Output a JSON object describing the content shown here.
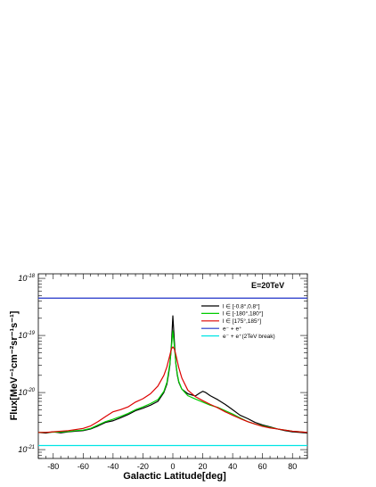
{
  "chart_data": {
    "type": "line",
    "annotation": "E=20TeV",
    "xlabel": "Galactic Latitude[deg]",
    "ylabel": "Flux[MeV⁻¹cm⁻²sr⁻¹s⁻¹]",
    "xlim": [
      -90,
      90
    ],
    "ylim": [
      7e-22,
      1.2e-18
    ],
    "yscale": "log",
    "x_ticks": [
      -80,
      -60,
      -40,
      -20,
      0,
      20,
      40,
      60,
      80
    ],
    "x_tick_labels": [
      "-80",
      "-60",
      "-40",
      "-20",
      "0",
      "20",
      "40",
      "60",
      "80"
    ],
    "y_ticks": [
      {
        "value": 1e-21,
        "mantissa": "10",
        "exponent": "-21"
      },
      {
        "value": 1e-20,
        "mantissa": "10",
        "exponent": "-20"
      },
      {
        "value": 1e-19,
        "mantissa": "10",
        "exponent": "-19"
      },
      {
        "value": 1e-18,
        "mantissa": "10",
        "exponent": "-18"
      }
    ],
    "legend_position": "top-right",
    "series": [
      {
        "name": "l ∈ [-0.8°,0.8°]",
        "color": "#000000",
        "x": [
          -90,
          -85,
          -80,
          -75,
          -70,
          -65,
          -60,
          -55,
          -50,
          -45,
          -40,
          -35,
          -30,
          -25,
          -20,
          -15,
          -10,
          -6,
          -4,
          -3,
          -2,
          -1,
          0,
          1,
          2,
          3,
          4,
          6,
          10,
          15,
          18,
          20,
          22,
          25,
          30,
          35,
          40,
          45,
          50,
          55,
          60,
          65,
          70,
          75,
          80,
          85,
          90
        ],
        "y": [
          2e-21,
          1.95e-21,
          2.05e-21,
          1.97e-21,
          2.05e-21,
          2.1e-21,
          2.15e-21,
          2.3e-21,
          2.6e-21,
          3e-21,
          3.2e-21,
          3.6e-21,
          4.1e-21,
          4.8e-21,
          5.3e-21,
          6e-21,
          7e-21,
          1e-20,
          1.4e-20,
          2e-20,
          3e-20,
          6.5e-20,
          2.2e-19,
          8e-20,
          3.2e-20,
          2e-20,
          1.5e-20,
          1.15e-20,
          9.5e-21,
          8.7e-21,
          9.8e-21,
          1.05e-20,
          1e-20,
          8.8e-21,
          7.5e-21,
          6.2e-21,
          5e-21,
          4e-21,
          3.5e-21,
          3e-21,
          2.7e-21,
          2.5e-21,
          2.3e-21,
          2.15e-21,
          2.05e-21,
          2e-21,
          1.95e-21
        ]
      },
      {
        "name": "l ∈ [-180°,180°]",
        "color": "#00cc00",
        "x": [
          -90,
          -85,
          -80,
          -75,
          -70,
          -65,
          -60,
          -55,
          -50,
          -45,
          -40,
          -35,
          -30,
          -25,
          -20,
          -15,
          -10,
          -6,
          -4,
          -3,
          -2,
          -1,
          0,
          1,
          2,
          3,
          4,
          6,
          10,
          15,
          20,
          25,
          30,
          35,
          40,
          45,
          50,
          55,
          60,
          65,
          70,
          75,
          80,
          85,
          90
        ],
        "y": [
          2e-21,
          2e-21,
          2.02e-21,
          2.03e-21,
          2.08e-21,
          2.15e-21,
          2.2e-21,
          2.35e-21,
          2.7e-21,
          3.1e-21,
          3.4e-21,
          3.8e-21,
          4.3e-21,
          5e-21,
          5.6e-21,
          6.4e-21,
          7.5e-21,
          1.05e-20,
          1.5e-20,
          2.2e-20,
          3.2e-20,
          6e-20,
          1.2e-19,
          6.5e-20,
          3.3e-20,
          2.1e-20,
          1.55e-20,
          1.15e-20,
          8.8e-21,
          7.7e-21,
          6.8e-21,
          6e-21,
          5.5e-21,
          4.8e-21,
          4.2e-21,
          3.6e-21,
          3.1e-21,
          2.8e-21,
          2.6e-21,
          2.45e-21,
          2.3e-21,
          2.2e-21,
          2.1e-21,
          2.05e-21,
          2e-21
        ]
      },
      {
        "name": "l ∈ [175°,185°]",
        "color": "#dd0000",
        "x": [
          -90,
          -85,
          -80,
          -75,
          -70,
          -65,
          -60,
          -55,
          -50,
          -45,
          -40,
          -35,
          -30,
          -25,
          -20,
          -15,
          -10,
          -6,
          -4,
          -2,
          -1,
          0,
          1,
          2,
          4,
          6,
          10,
          15,
          20,
          25,
          30,
          35,
          40,
          45,
          50,
          55,
          60,
          65,
          70,
          75,
          80,
          85,
          90
        ],
        "y": [
          2e-21,
          2e-21,
          2.05e-21,
          2.1e-21,
          2.15e-21,
          2.25e-21,
          2.35e-21,
          2.6e-21,
          3.1e-21,
          3.8e-21,
          4.6e-21,
          5e-21,
          5.6e-21,
          6.8e-21,
          7.8e-21,
          9.5e-21,
          1.3e-20,
          2e-20,
          2.8e-20,
          4.5e-20,
          5.8e-20,
          6.3e-20,
          5.8e-20,
          4.6e-20,
          2.7e-20,
          1.8e-20,
          1.1e-20,
          8.5e-21,
          7.2e-21,
          6.2e-21,
          5.4e-21,
          4.6e-21,
          4e-21,
          3.5e-21,
          3.1e-21,
          2.8e-21,
          2.55e-21,
          2.4e-21,
          2.3e-21,
          2.2e-21,
          2.1e-21,
          2.05e-21,
          2e-21
        ]
      },
      {
        "name": "e⁻ + e⁺",
        "color": "#1f32c8",
        "x": [
          -90,
          90
        ],
        "y": [
          4.5e-19,
          4.5e-19
        ]
      },
      {
        "name": "e⁻ + e⁺(2TeV break)",
        "color": "#00e5e5",
        "x": [
          -90,
          90
        ],
        "y": [
          1.18e-21,
          1.18e-21
        ]
      }
    ]
  }
}
